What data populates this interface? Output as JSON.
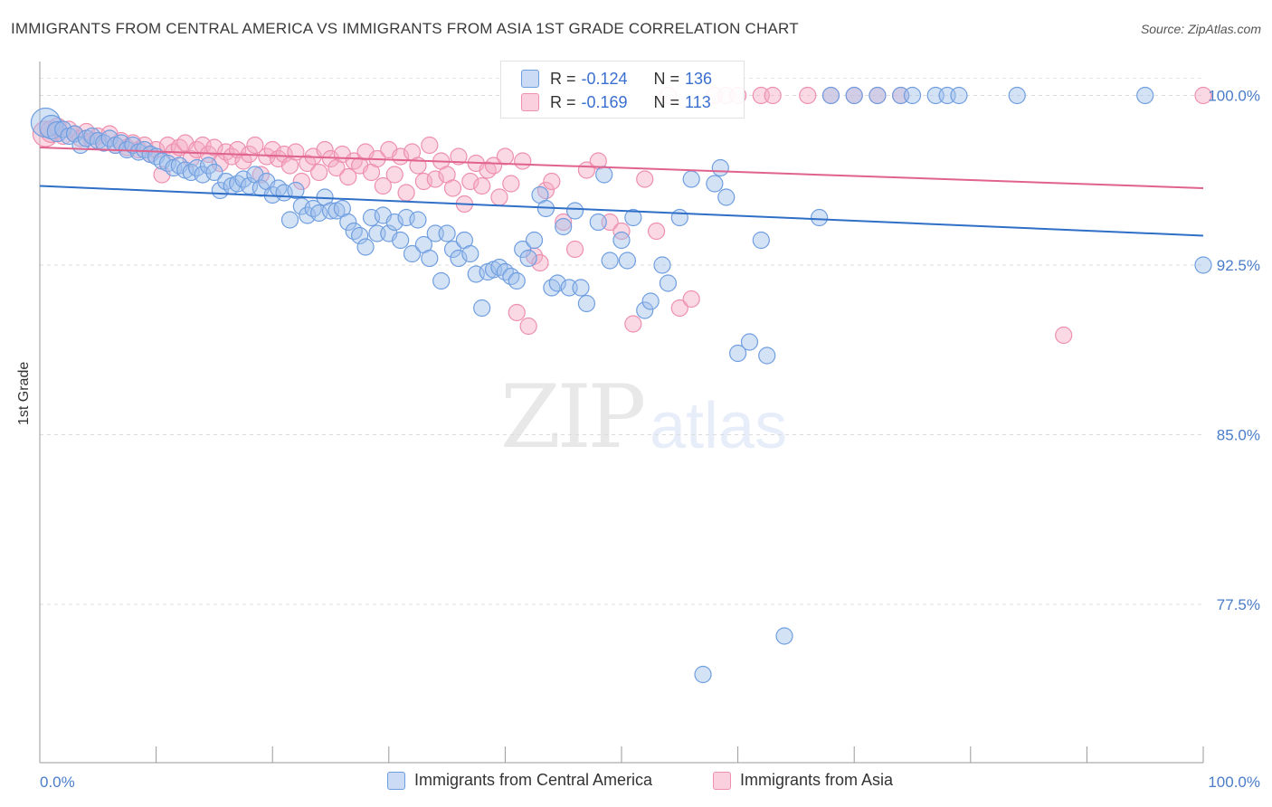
{
  "header": {
    "title": "IMMIGRANTS FROM CENTRAL AMERICA VS IMMIGRANTS FROM ASIA 1ST GRADE CORRELATION CHART",
    "source": "Source: ZipAtlas.com"
  },
  "watermark": {
    "zip": "ZIP",
    "atlas": "atlas"
  },
  "legend": {
    "rows": [
      {
        "r_label": "R =",
        "r_value": "-0.124",
        "n_label": "N =",
        "n_value": "136",
        "color": "#a9c4ee"
      },
      {
        "r_label": "R =",
        "r_value": "-0.169",
        "n_label": "N =",
        "n_value": "113",
        "color": "#f5b2c6"
      }
    ]
  },
  "bottom_legend": {
    "series1": "Immigrants from Central America",
    "series2": "Immigrants from Asia"
  },
  "colors": {
    "blue_fill": "rgba(160,190,236,0.45)",
    "blue_stroke": "#6f9ee0",
    "blue_line": "#2f6fc7",
    "pink_fill": "rgba(245,170,196,0.45)",
    "pink_stroke": "#ee8fae",
    "pink_line": "#e0638d",
    "axis_text": "#4a7cc9"
  },
  "chart_data": {
    "type": "scatter",
    "title": "IMMIGRANTS FROM CENTRAL AMERICA VS IMMIGRANTS FROM ASIA 1ST GRADE CORRELATION CHART",
    "xlabel": "",
    "ylabel": "1st Grade",
    "xlim": [
      0,
      100
    ],
    "ylim": [
      70.5,
      101.5
    ],
    "x_tick_labels": [
      "0.0%",
      "100.0%"
    ],
    "y_ticks": [
      77.5,
      85.0,
      92.5,
      100.0
    ],
    "y_tick_labels": [
      "77.5%",
      "85.0%",
      "92.5%",
      "100.0%"
    ],
    "grid": true,
    "legend_position": "top-center",
    "series": [
      {
        "name": "Immigrants from Central America",
        "r": -0.124,
        "n": 136,
        "trend": {
          "x": [
            0,
            100
          ],
          "y": [
            96.0,
            93.8
          ]
        },
        "points": [
          [
            0.5,
            98.8
          ],
          [
            1,
            98.6
          ],
          [
            1.5,
            98.4
          ],
          [
            2,
            98.5
          ],
          [
            2.5,
            98.2
          ],
          [
            3,
            98.3
          ],
          [
            3.5,
            97.8
          ],
          [
            4,
            98.1
          ],
          [
            4.5,
            98.2
          ],
          [
            5,
            98.0
          ],
          [
            5.5,
            97.9
          ],
          [
            6,
            98.1
          ],
          [
            6.5,
            97.8
          ],
          [
            7,
            97.9
          ],
          [
            7.5,
            97.6
          ],
          [
            8,
            97.8
          ],
          [
            8.5,
            97.5
          ],
          [
            9,
            97.6
          ],
          [
            9.5,
            97.4
          ],
          [
            10,
            97.3
          ],
          [
            10.5,
            97.1
          ],
          [
            11,
            97.0
          ],
          [
            11.5,
            96.8
          ],
          [
            12,
            96.9
          ],
          [
            12.5,
            96.7
          ],
          [
            13,
            96.6
          ],
          [
            13.5,
            96.8
          ],
          [
            14,
            96.5
          ],
          [
            14.5,
            96.9
          ],
          [
            15,
            96.6
          ],
          [
            15.5,
            95.8
          ],
          [
            16,
            96.2
          ],
          [
            16.5,
            96.0
          ],
          [
            17,
            96.1
          ],
          [
            17.5,
            96.3
          ],
          [
            18,
            96.0
          ],
          [
            18.5,
            96.5
          ],
          [
            19,
            95.9
          ],
          [
            19.5,
            96.2
          ],
          [
            20,
            95.6
          ],
          [
            20.5,
            95.9
          ],
          [
            21,
            95.7
          ],
          [
            21.5,
            94.5
          ],
          [
            22,
            95.8
          ],
          [
            22.5,
            95.1
          ],
          [
            23,
            94.7
          ],
          [
            23.5,
            95.0
          ],
          [
            24,
            94.8
          ],
          [
            24.5,
            95.5
          ],
          [
            25,
            94.9
          ],
          [
            25.5,
            94.9
          ],
          [
            26,
            95.0
          ],
          [
            26.5,
            94.4
          ],
          [
            27,
            94.0
          ],
          [
            27.5,
            93.8
          ],
          [
            28,
            93.3
          ],
          [
            28.5,
            94.6
          ],
          [
            29,
            93.9
          ],
          [
            29.5,
            94.7
          ],
          [
            30,
            93.9
          ],
          [
            30.5,
            94.4
          ],
          [
            31,
            93.6
          ],
          [
            31.5,
            94.6
          ],
          [
            32,
            93.0
          ],
          [
            32.5,
            94.5
          ],
          [
            33,
            93.4
          ],
          [
            33.5,
            92.8
          ],
          [
            34,
            93.9
          ],
          [
            34.5,
            91.8
          ],
          [
            35,
            93.9
          ],
          [
            35.5,
            93.2
          ],
          [
            36,
            92.8
          ],
          [
            36.5,
            93.6
          ],
          [
            37,
            93.0
          ],
          [
            37.5,
            92.1
          ],
          [
            38,
            90.6
          ],
          [
            38.5,
            92.2
          ],
          [
            39,
            92.3
          ],
          [
            39.5,
            92.4
          ],
          [
            40,
            92.2
          ],
          [
            40.5,
            92.0
          ],
          [
            41,
            91.8
          ],
          [
            41.5,
            93.2
          ],
          [
            42,
            92.8
          ],
          [
            42.5,
            93.6
          ],
          [
            43,
            95.6
          ],
          [
            43.5,
            95.0
          ],
          [
            44,
            91.5
          ],
          [
            44.5,
            91.7
          ],
          [
            45,
            94.2
          ],
          [
            45.5,
            91.5
          ],
          [
            46,
            94.9
          ],
          [
            46.5,
            91.5
          ],
          [
            47,
            90.8
          ],
          [
            48,
            94.4
          ],
          [
            48.5,
            96.5
          ],
          [
            49,
            92.7
          ],
          [
            50,
            93.6
          ],
          [
            50.5,
            92.7
          ],
          [
            51,
            94.6
          ],
          [
            52,
            90.5
          ],
          [
            52.5,
            90.9
          ],
          [
            53.5,
            92.5
          ],
          [
            54,
            91.7
          ],
          [
            55,
            94.6
          ],
          [
            56,
            96.3
          ],
          [
            57,
            74.4
          ],
          [
            58,
            96.1
          ],
          [
            58.5,
            96.8
          ],
          [
            59,
            95.5
          ],
          [
            60,
            88.6
          ],
          [
            61,
            89.1
          ],
          [
            62,
            93.6
          ],
          [
            62.5,
            88.5
          ],
          [
            64,
            76.1
          ],
          [
            67,
            94.6
          ],
          [
            68,
            100.0
          ],
          [
            70,
            100.0
          ],
          [
            72,
            100.0
          ],
          [
            74,
            100.0
          ],
          [
            75,
            100.0
          ],
          [
            77,
            100.0
          ],
          [
            78,
            100.0
          ],
          [
            79,
            100.0
          ],
          [
            84,
            100.0
          ],
          [
            95,
            100.0
          ],
          [
            100,
            92.5
          ]
        ]
      },
      {
        "name": "Immigrants from Asia",
        "r": -0.169,
        "n": 113,
        "trend": {
          "x": [
            0,
            100
          ],
          "y": [
            97.7,
            95.9
          ]
        },
        "points": [
          [
            0.5,
            98.3
          ],
          [
            1,
            98.4
          ],
          [
            1.5,
            98.6
          ],
          [
            2,
            98.2
          ],
          [
            2.5,
            98.5
          ],
          [
            3,
            98.3
          ],
          [
            3.5,
            98.1
          ],
          [
            4,
            98.4
          ],
          [
            4.5,
            98.0
          ],
          [
            5,
            98.2
          ],
          [
            5.5,
            97.9
          ],
          [
            6,
            98.3
          ],
          [
            6.5,
            97.8
          ],
          [
            7,
            98.0
          ],
          [
            7.5,
            97.7
          ],
          [
            8,
            97.9
          ],
          [
            8.5,
            97.6
          ],
          [
            9,
            97.8
          ],
          [
            9.5,
            97.4
          ],
          [
            10,
            97.6
          ],
          [
            10.5,
            96.5
          ],
          [
            11,
            97.8
          ],
          [
            11.5,
            97.5
          ],
          [
            12,
            97.7
          ],
          [
            12.5,
            97.9
          ],
          [
            13,
            97.2
          ],
          [
            13.5,
            97.6
          ],
          [
            14,
            97.8
          ],
          [
            14.5,
            97.4
          ],
          [
            15,
            97.7
          ],
          [
            15.5,
            97.0
          ],
          [
            16,
            97.5
          ],
          [
            16.5,
            97.3
          ],
          [
            17,
            97.6
          ],
          [
            17.5,
            97.1
          ],
          [
            18,
            97.4
          ],
          [
            18.5,
            97.8
          ],
          [
            19,
            96.5
          ],
          [
            19.5,
            97.3
          ],
          [
            20,
            97.6
          ],
          [
            20.5,
            97.2
          ],
          [
            21,
            97.4
          ],
          [
            21.5,
            96.9
          ],
          [
            22,
            97.5
          ],
          [
            22.5,
            96.2
          ],
          [
            23,
            97.0
          ],
          [
            23.5,
            97.3
          ],
          [
            24,
            96.6
          ],
          [
            24.5,
            97.6
          ],
          [
            25,
            97.2
          ],
          [
            25.5,
            96.8
          ],
          [
            26,
            97.4
          ],
          [
            26.5,
            96.4
          ],
          [
            27,
            97.1
          ],
          [
            27.5,
            96.9
          ],
          [
            28,
            97.5
          ],
          [
            28.5,
            96.6
          ],
          [
            29,
            97.2
          ],
          [
            29.5,
            96.0
          ],
          [
            30,
            97.6
          ],
          [
            30.5,
            96.5
          ],
          [
            31,
            97.3
          ],
          [
            31.5,
            95.7
          ],
          [
            32,
            97.5
          ],
          [
            32.5,
            96.9
          ],
          [
            33,
            96.2
          ],
          [
            33.5,
            97.8
          ],
          [
            34,
            96.3
          ],
          [
            34.5,
            97.1
          ],
          [
            35,
            96.5
          ],
          [
            35.5,
            95.9
          ],
          [
            36,
            97.3
          ],
          [
            36.5,
            95.2
          ],
          [
            37,
            96.2
          ],
          [
            37.5,
            97.0
          ],
          [
            38,
            96.0
          ],
          [
            38.5,
            96.7
          ],
          [
            39,
            96.9
          ],
          [
            39.5,
            95.5
          ],
          [
            40,
            97.3
          ],
          [
            40.5,
            96.1
          ],
          [
            41,
            90.4
          ],
          [
            41.5,
            97.1
          ],
          [
            42,
            89.8
          ],
          [
            42.5,
            92.9
          ],
          [
            43,
            92.6
          ],
          [
            43.5,
            95.8
          ],
          [
            44,
            96.2
          ],
          [
            45,
            94.4
          ],
          [
            46,
            93.2
          ],
          [
            47,
            96.7
          ],
          [
            48,
            97.1
          ],
          [
            49,
            94.4
          ],
          [
            50,
            94.0
          ],
          [
            51,
            89.9
          ],
          [
            52,
            96.3
          ],
          [
            53,
            94.0
          ],
          [
            54,
            100.0
          ],
          [
            55,
            90.6
          ],
          [
            56,
            91.0
          ],
          [
            58,
            100.0
          ],
          [
            59,
            100.0
          ],
          [
            60,
            100.0
          ],
          [
            62,
            100.0
          ],
          [
            63,
            100.0
          ],
          [
            66,
            100.0
          ],
          [
            68,
            100.0
          ],
          [
            70,
            100.0
          ],
          [
            72,
            100.0
          ],
          [
            74,
            100.0
          ],
          [
            88,
            89.4
          ],
          [
            100,
            100.0
          ]
        ]
      }
    ]
  }
}
